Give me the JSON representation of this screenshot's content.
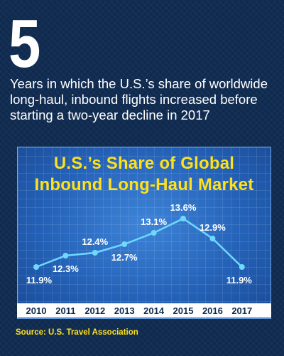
{
  "headline": {
    "number": "5",
    "description": "Years in which the U.S.’s share of worldwide long-haul, inbound flights increased before starting a two-year decline in 2017"
  },
  "source": "Source: U.S. Travel Association",
  "colors": {
    "background": "#0f2a4f",
    "accent": "#ffe11a",
    "line": "#6fd8ff",
    "chart_bg": "#2462b8"
  },
  "chart_data": {
    "type": "line",
    "title_lines": [
      "U.S.’s Share of Global",
      "Inbound Long-Haul Market"
    ],
    "categories": [
      "2010",
      "2011",
      "2012",
      "2013",
      "2014",
      "2015",
      "2016",
      "2017"
    ],
    "values": [
      11.9,
      12.3,
      12.4,
      12.7,
      13.1,
      13.6,
      12.9,
      11.9
    ],
    "data_labels": [
      "11.9%",
      "12.3%",
      "12.4%",
      "12.7%",
      "13.1%",
      "13.6%",
      "12.9%",
      "11.9%"
    ],
    "xlabel": "",
    "ylabel": "",
    "ylim": [
      11.7,
      13.7
    ],
    "grid": true,
    "legend": "none"
  }
}
